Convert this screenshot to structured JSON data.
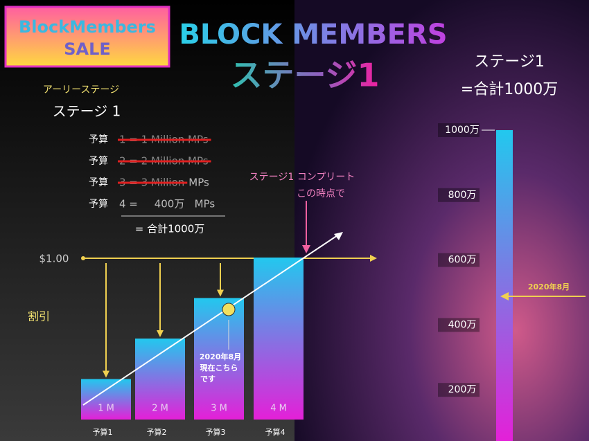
{
  "badge": {
    "line1": "BlockMembers",
    "line2": "SALE"
  },
  "title": "BLOCK MEMBERS",
  "subtitle": "ステージ1",
  "summary": {
    "line1": "ステージ1",
    "line2": "=合計1000万"
  },
  "early": {
    "label": "アーリーステージ",
    "stage": "ステージ 1"
  },
  "budget_rows": [
    {
      "label": "予算",
      "struck": "1 = 1 Million MPs",
      "plain": ""
    },
    {
      "label": "予算",
      "struck": "2 = 2 Million MPs",
      "plain": ""
    },
    {
      "label": "予算",
      "struck": "3 = 3 Million",
      "plain": "MPs"
    },
    {
      "label": "予算",
      "struck": "",
      "plain": "4 =     400万   MPs"
    }
  ],
  "total": "= 合計1000万",
  "price": "$1.00",
  "complete": {
    "line1": "ステージ1 コンプリート",
    "line2": "この時点で"
  },
  "discount": "割引",
  "now_note": [
    "2020年8月",
    "現在こちら",
    "です"
  ],
  "bars": [
    {
      "value": 1,
      "label": "1 M",
      "budget": "予算1"
    },
    {
      "value": 2,
      "label": "2 M",
      "budget": "予算2"
    },
    {
      "value": 3,
      "label": "3 M",
      "budget": "予算3"
    },
    {
      "value": 4,
      "label": "4 M",
      "budget": "予算4"
    }
  ],
  "scale": {
    "max": {
      "value": 1000,
      "label": "1000万"
    },
    "ticks": [
      {
        "value": 1000,
        "label": "1000万"
      },
      {
        "value": 800,
        "label": "800万"
      },
      {
        "value": 600,
        "label": "600万"
      },
      {
        "value": 400,
        "label": "400万"
      },
      {
        "value": 200,
        "label": "200万"
      }
    ]
  },
  "marker": "2020年8月"
}
